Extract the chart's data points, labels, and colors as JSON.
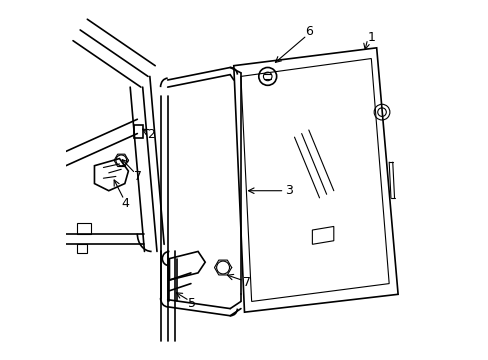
{
  "background_color": "#ffffff",
  "line_color": "#000000",
  "figsize": [
    4.89,
    3.6
  ],
  "dpi": 100,
  "lw_main": 1.2,
  "lw_thin": 0.8,
  "label_fontsize": 9
}
